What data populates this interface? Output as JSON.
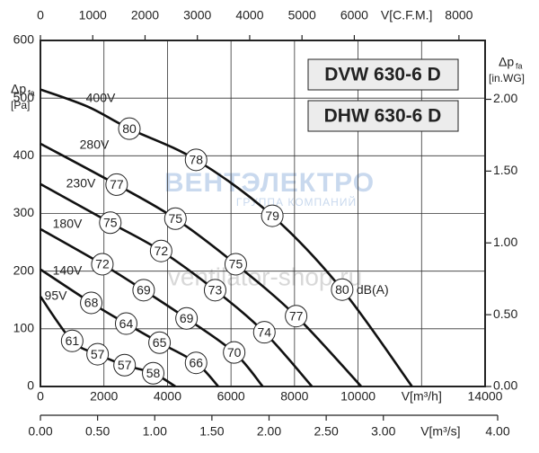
{
  "chart_data": {
    "type": "line",
    "titles": [
      "DVW 630-6 D",
      "DHW 630-6 D"
    ],
    "watermark": [
      "ВЕНТЭЛЕКТРО",
      "ГРУППА КОМПАНИЙ",
      "ventilator-shop.ru"
    ],
    "x_label": "V[m³/h]",
    "xlim": [
      0,
      14000
    ],
    "xticks": [
      0,
      2000,
      4000,
      6000,
      8000,
      10000,
      14000
    ],
    "xgrid": [
      2000,
      4000,
      6000,
      8000,
      10000,
      12000
    ],
    "x2_label": "V[m³/s]",
    "x2lim": [
      0,
      4
    ],
    "x2ticks": [
      {
        "value": 0,
        "label": "0.00"
      },
      {
        "value": 0.5,
        "label": "0.50"
      },
      {
        "value": 1,
        "label": "1.00"
      },
      {
        "value": 1.5,
        "label": "1.50"
      },
      {
        "value": 2,
        "label": "2.00"
      },
      {
        "value": 2.5,
        "label": "2.50"
      },
      {
        "value": 3,
        "label": "3.00"
      },
      {
        "value": 4,
        "label": "4.00"
      }
    ],
    "x3_label": "V[C.F.M.]",
    "x3lim": [
      0,
      8500
    ],
    "x3ticks": [
      0,
      1000,
      2000,
      3000,
      4000,
      5000,
      6000,
      8000
    ],
    "y_label": "Δp",
    "y_label_sub": "fa",
    "y_unit": "[Pa]",
    "ylim": [
      0,
      600
    ],
    "yticks": [
      0,
      100,
      200,
      300,
      400,
      500,
      600
    ],
    "y2_label": "Δp",
    "y2_label_sub": "fa",
    "y2_unit": "[in.WG]",
    "y2lim": [
      0,
      2.41
    ],
    "y2ticks": [
      {
        "value": 0,
        "label": "0.00"
      },
      {
        "value": 0.5,
        "label": "0.50"
      },
      {
        "value": 1,
        "label": "1.00"
      },
      {
        "value": 1.5,
        "label": "1.50"
      },
      {
        "value": 2,
        "label": "2.00"
      }
    ],
    "grid": true,
    "marker_unit": "dB(A)",
    "series": [
      {
        "name": "400V",
        "color": "#111111",
        "x": [
          0,
          1500,
          2800,
          4900,
          7300,
          9500,
          11700
        ],
        "values": [
          515,
          485,
          447,
          393,
          296,
          168,
          0
        ],
        "markers": [
          {
            "x": 2800,
            "y": 447,
            "label": 80
          },
          {
            "x": 4900,
            "y": 393,
            "label": 78
          },
          {
            "x": 7300,
            "y": 296,
            "label": 79
          },
          {
            "x": 9500,
            "y": 168,
            "label": 80
          }
        ]
      },
      {
        "name": "280V",
        "color": "#111111",
        "x": [
          0,
          2400,
          4250,
          6150,
          8050,
          10100
        ],
        "values": [
          421,
          350,
          291,
          212,
          122,
          0
        ],
        "markers": [
          {
            "x": 2400,
            "y": 350,
            "label": 77
          },
          {
            "x": 4250,
            "y": 291,
            "label": 75
          },
          {
            "x": 6150,
            "y": 212,
            "label": 75
          },
          {
            "x": 8050,
            "y": 122,
            "label": 77
          }
        ]
      },
      {
        "name": "230V",
        "color": "#111111",
        "x": [
          0,
          2200,
          3800,
          5500,
          7050,
          8550
        ],
        "values": [
          351,
          284,
          235,
          167,
          94,
          0
        ],
        "markers": [
          {
            "x": 2200,
            "y": 284,
            "label": 75
          },
          {
            "x": 3800,
            "y": 235,
            "label": 72
          },
          {
            "x": 5500,
            "y": 167,
            "label": 73
          },
          {
            "x": 7050,
            "y": 94,
            "label": 74
          }
        ]
      },
      {
        "name": "180V",
        "color": "#111111",
        "x": [
          0,
          1950,
          3250,
          4600,
          6100,
          7000
        ],
        "values": [
          273,
          212,
          167,
          118,
          59,
          0
        ],
        "markers": [
          {
            "x": 1950,
            "y": 212,
            "label": 72
          },
          {
            "x": 3250,
            "y": 167,
            "label": 69
          },
          {
            "x": 4600,
            "y": 118,
            "label": 69
          },
          {
            "x": 6100,
            "y": 59,
            "label": 70
          }
        ]
      },
      {
        "name": "140V",
        "color": "#111111",
        "x": [
          0,
          1600,
          2700,
          3750,
          4900,
          5600
        ],
        "values": [
          203,
          145,
          109,
          76,
          41,
          0
        ],
        "markers": [
          {
            "x": 1600,
            "y": 145,
            "label": 68
          },
          {
            "x": 2700,
            "y": 109,
            "label": 64
          },
          {
            "x": 3750,
            "y": 76,
            "label": 65
          },
          {
            "x": 4900,
            "y": 41,
            "label": 66
          }
        ]
      },
      {
        "name": "95V",
        "color": "#111111",
        "x": [
          0,
          1000,
          1800,
          2650,
          3550,
          4250
        ],
        "values": [
          156,
          79,
          56,
          37,
          23,
          0
        ],
        "markers": [
          {
            "x": 1000,
            "y": 79,
            "label": 61
          },
          {
            "x": 1800,
            "y": 56,
            "label": 57
          },
          {
            "x": 2650,
            "y": 37,
            "label": 57
          },
          {
            "x": 3550,
            "y": 23,
            "label": 58
          }
        ]
      }
    ]
  }
}
